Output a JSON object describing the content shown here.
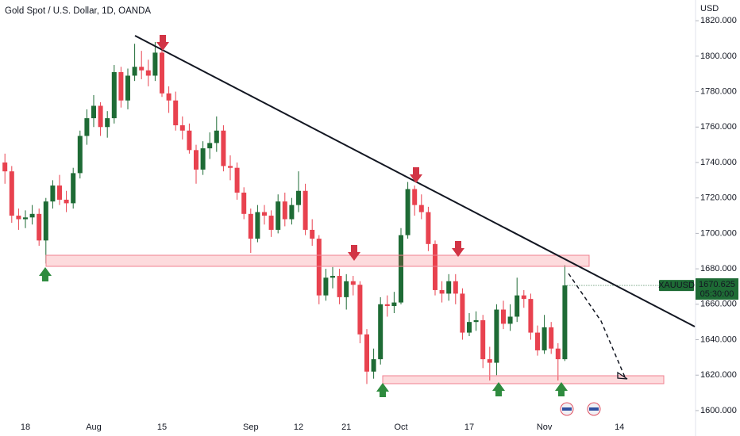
{
  "chart_data": {
    "type": "candlestick",
    "title": "Gold Spot / U.S. Dollar, 1D, OANDA",
    "y_axis_label": "USD",
    "symbol": "XAUUSD",
    "last_price": 1670.625,
    "countdown": "05:30:00",
    "up_color": "#1e6b35",
    "down_color": "#e8424f",
    "categories": [
      null,
      null,
      null,
      "18",
      null,
      null,
      null,
      null,
      null,
      null,
      null,
      null,
      null,
      "Aug",
      null,
      null,
      null,
      null,
      null,
      null,
      null,
      null,
      null,
      "15",
      null,
      null,
      null,
      null,
      null,
      null,
      null,
      null,
      null,
      null,
      null,
      null,
      "Sep",
      null,
      null,
      null,
      null,
      null,
      null,
      "12",
      null,
      null,
      null,
      null,
      null,
      null,
      "21",
      null,
      null,
      null,
      null,
      null,
      null,
      null,
      "Oct",
      null,
      null,
      null,
      null,
      null,
      null,
      null,
      null,
      null,
      "17",
      null,
      null,
      null,
      null,
      null,
      null,
      null,
      null,
      null,
      null,
      "Nov",
      null,
      null,
      null,
      null,
      null,
      null,
      null,
      null,
      null,
      null,
      "14"
    ],
    "open": [
      1740,
      1735,
      1710,
      1708,
      1709,
      1711,
      1696,
      1718,
      1727,
      1719,
      1717,
      1734,
      1755,
      1765,
      1772,
      1760,
      1765,
      1791,
      1775,
      1789,
      1794,
      1792,
      1789,
      1802,
      1779,
      1775,
      1761,
      1758,
      1747,
      1736,
      1748,
      1751,
      1758,
      1738,
      1737,
      1723,
      1711,
      1697,
      1712,
      1710,
      1702,
      1718,
      1708,
      1716,
      1724,
      1702,
      1697,
      1665,
      1675,
      1676,
      1664,
      1673,
      1671,
      1643,
      1622,
      1629,
      1660,
      1659,
      1661,
      1699,
      1725,
      1716,
      1712,
      1694,
      1668,
      1666,
      1673,
      1666,
      1644,
      1650,
      1651,
      1629,
      1627,
      1657,
      1649,
      1653,
      1665,
      1663,
      1644,
      1634,
      1647,
      1635,
      1629,
      null,
      null,
      null,
      null,
      null,
      null,
      null,
      null
    ],
    "high": [
      1745,
      1738,
      1714,
      1713,
      1716,
      1714,
      1720,
      1730,
      1733,
      1724,
      1737,
      1758,
      1770,
      1778,
      1774,
      1769,
      1795,
      1794,
      1793,
      1807,
      1803,
      1798,
      1808,
      1805,
      1783,
      1780,
      1766,
      1762,
      1750,
      1752,
      1757,
      1766,
      1761,
      1744,
      1740,
      1726,
      1714,
      1716,
      1716,
      1713,
      1722,
      1723,
      1720,
      1735,
      1728,
      1708,
      1699,
      1680,
      1681,
      1680,
      1677,
      1676,
      1673,
      1646,
      1635,
      1664,
      1665,
      1667,
      1703,
      1729,
      1727,
      1722,
      1715,
      1696,
      1673,
      1677,
      1677,
      1669,
      1655,
      1656,
      1654,
      1636,
      1660,
      1662,
      1660,
      1675,
      1668,
      1666,
      1648,
      1654,
      1650,
      1638,
      1682,
      null,
      null,
      null,
      null,
      null,
      null,
      null,
      null
    ],
    "low": [
      1728,
      1706,
      1702,
      1703,
      1705,
      1693,
      1683,
      1714,
      1716,
      1712,
      1714,
      1731,
      1750,
      1760,
      1755,
      1754,
      1762,
      1771,
      1770,
      1786,
      1787,
      1783,
      1786,
      1777,
      1768,
      1758,
      1753,
      1745,
      1728,
      1733,
      1742,
      1746,
      1735,
      1730,
      1719,
      1708,
      1689,
      1695,
      1705,
      1698,
      1700,
      1704,
      1705,
      1712,
      1699,
      1693,
      1660,
      1662,
      1669,
      1660,
      1657,
      1665,
      1638,
      1615,
      1618,
      1626,
      1653,
      1655,
      1660,
      1697,
      1710,
      1708,
      1690,
      1665,
      1661,
      1662,
      1660,
      1640,
      1642,
      1645,
      1624,
      1617,
      1620,
      1646,
      1645,
      1650,
      1658,
      1640,
      1631,
      1632,
      1632,
      1617,
      1628,
      null,
      null,
      null,
      null,
      null,
      null,
      null,
      null
    ],
    "close": [
      1735,
      1710,
      1708,
      1709,
      1711,
      1696,
      1718,
      1727,
      1719,
      1717,
      1734,
      1755,
      1765,
      1772,
      1760,
      1765,
      1791,
      1775,
      1789,
      1794,
      1792,
      1789,
      1802,
      1779,
      1775,
      1761,
      1758,
      1747,
      1736,
      1748,
      1751,
      1758,
      1738,
      1737,
      1723,
      1711,
      1697,
      1712,
      1710,
      1702,
      1718,
      1708,
      1716,
      1724,
      1702,
      1697,
      1665,
      1675,
      1676,
      1664,
      1673,
      1671,
      1643,
      1622,
      1629,
      1660,
      1659,
      1661,
      1699,
      1725,
      1716,
      1712,
      1694,
      1668,
      1666,
      1673,
      1666,
      1644,
      1650,
      1651,
      1629,
      1627,
      1657,
      1649,
      1653,
      1665,
      1663,
      1644,
      1634,
      1647,
      1635,
      1629,
      1670.625,
      null,
      null,
      null,
      null,
      null,
      null,
      null,
      null
    ],
    "ylim": [
      1595.5,
      1831.7
    ],
    "yticks": [
      {
        "value": 1600,
        "label": "1600.000"
      },
      {
        "value": 1620,
        "label": "1620.000"
      },
      {
        "value": 1640,
        "label": "1640.000"
      },
      {
        "value": 1660,
        "label": "1660.000"
      },
      {
        "value": 1680,
        "label": "1680.000"
      },
      {
        "value": 1700,
        "label": "1700.000"
      },
      {
        "value": 1720,
        "label": "1720.000"
      },
      {
        "value": 1740,
        "label": "1740.000"
      },
      {
        "value": 1760,
        "label": "1760.000"
      },
      {
        "value": 1780,
        "label": "1780.000"
      },
      {
        "value": 1800,
        "label": "1800.000"
      },
      {
        "value": 1820,
        "label": "1820.000"
      }
    ],
    "grid": false
  }
}
